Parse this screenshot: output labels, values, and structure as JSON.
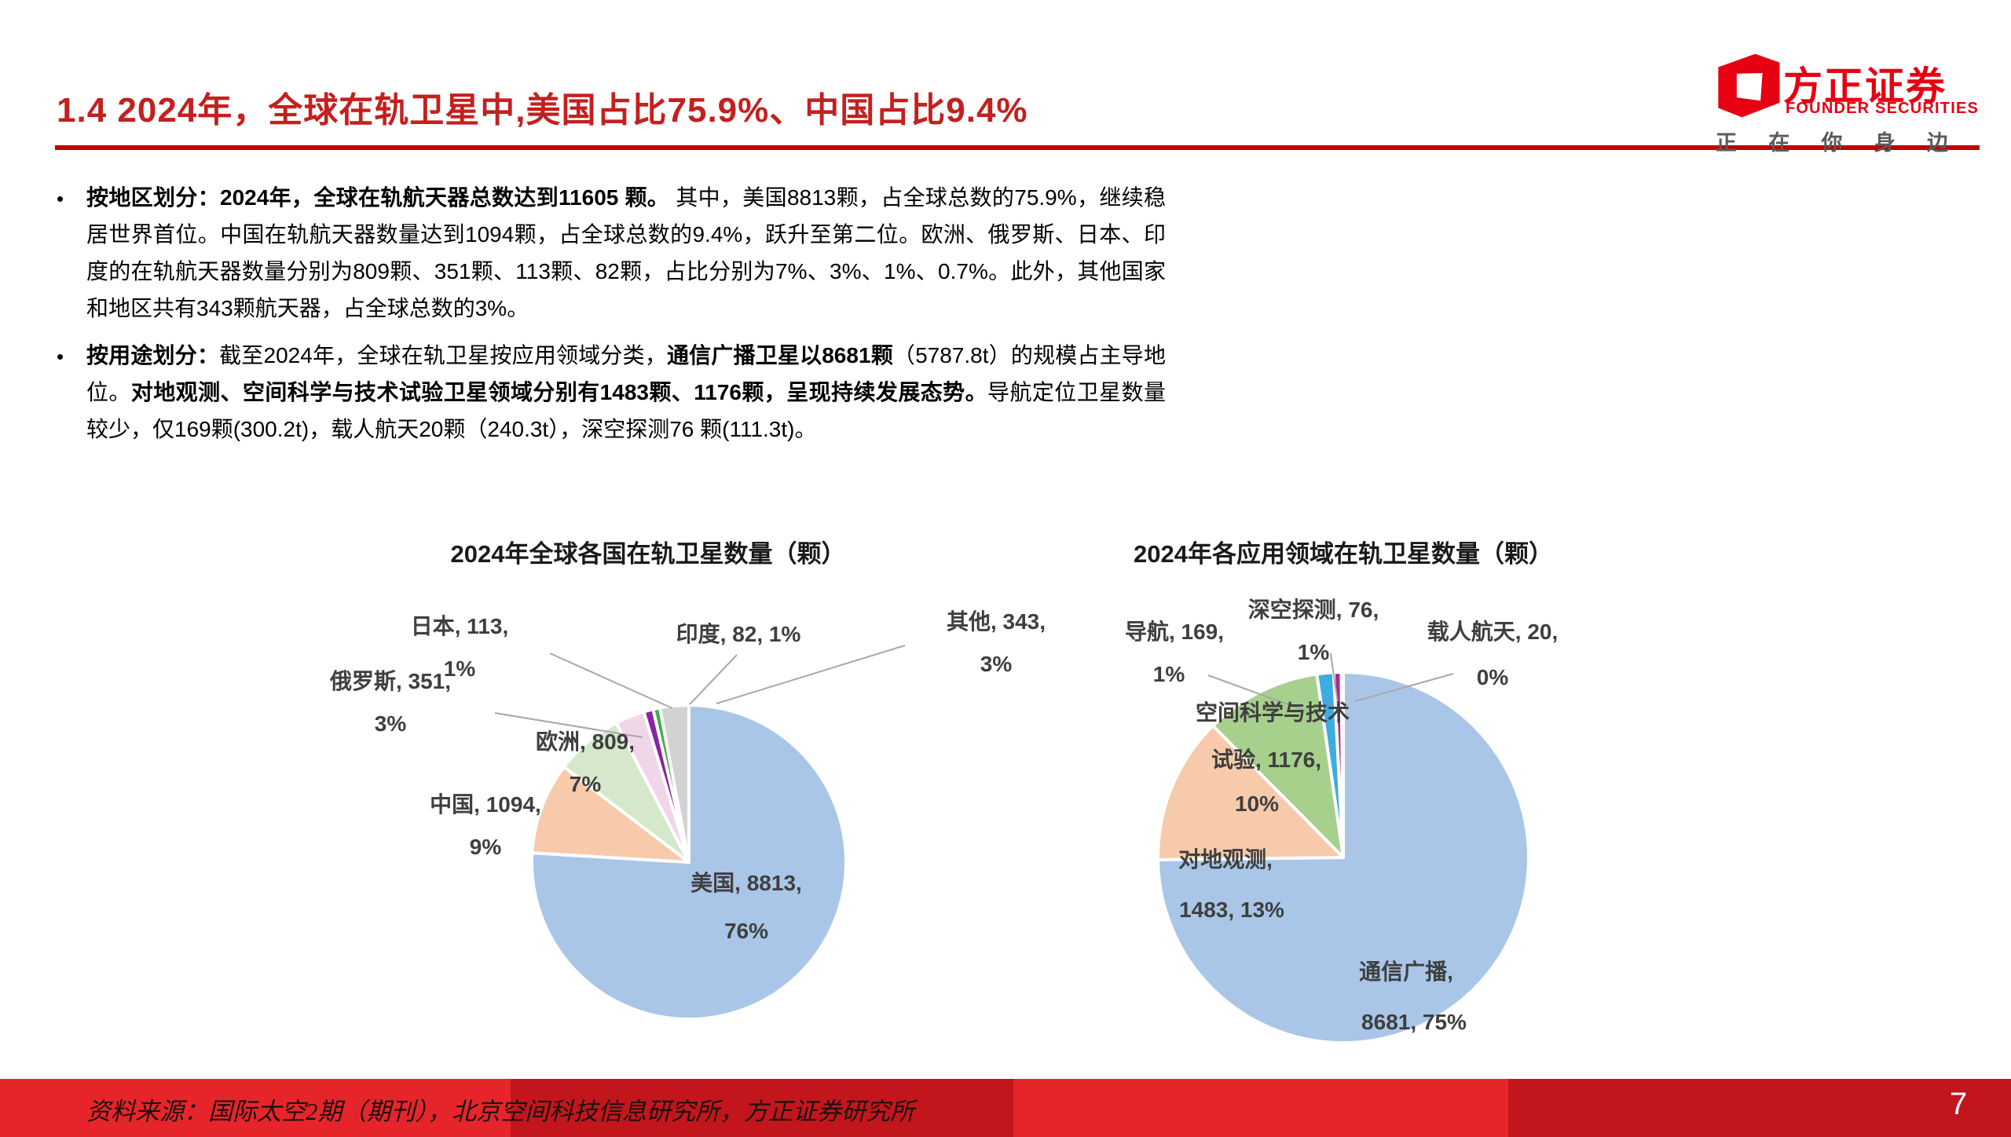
{
  "page": {
    "title": "1.4 2024年，全球在轨卫星中,美国占比75.9%、中国占比9.4%",
    "title_color": "#C3201F",
    "rule_color": "#C00000"
  },
  "logo": {
    "cn": "方正证券",
    "en": "FOUNDER SECURITIES",
    "tagline": "正在你身边",
    "red": "#E60012",
    "gray": "#5A5A5C"
  },
  "bullets": [
    {
      "segments": [
        {
          "b": 1,
          "t": "按地区划分：2024年，全球在轨航天器总数达到11605 颗。"
        },
        {
          "b": 0,
          "t": " 其中，美国8813颗，占全球总数的75.9%，继续稳居世界首位。中国在轨航天器数量达到1094颗，占全球总数的9.4%，跃升至第二位。欧洲、俄罗斯、日本、印度的在轨航天器数量分别为809颗、351颗、113颗、82颗，占比分别为7%、3%、1%、0.7%。此外，其他国家和地区共有343颗航天器，占全球总数的3%。"
        }
      ]
    },
    {
      "segments": [
        {
          "b": 1,
          "t": "按用途划分："
        },
        {
          "b": 0,
          "t": "截至2024年，全球在轨卫星按应用领域分类，"
        },
        {
          "b": 1,
          "t": "通信广播卫星以8681颗"
        },
        {
          "b": 0,
          "t": "（5787.8t）的规模占主导地位。"
        },
        {
          "b": 1,
          "t": "对地观测、空间科学与技术试验卫星领域分别有1483颗、1176颗，呈现持续发展态势。"
        },
        {
          "b": 0,
          "t": "导航定位卫星数量较少，仅169颗(300.2t)，载人航天20颗（240.3t），深空探测76 颗(111.3t)。"
        }
      ]
    }
  ],
  "chart_data": [
    {
      "type": "pie",
      "title": "2024年全球各国在轨卫星数量（颗）",
      "categories": [
        "美国",
        "中国",
        "欧洲",
        "俄罗斯",
        "日本",
        "印度",
        "其他"
      ],
      "values": [
        8813,
        1094,
        809,
        351,
        113,
        82,
        343
      ],
      "percent_labels": [
        "76%",
        "9%",
        "7%",
        "3%",
        "1%",
        "1%",
        "3%"
      ],
      "label_lines": [
        [
          "美国, 8813,",
          "76%"
        ],
        [
          "中国, 1094,",
          "9%"
        ],
        [
          "欧洲, 809,",
          "7%"
        ],
        [
          "俄罗斯, 351,",
          "3%"
        ],
        [
          "日本, 113,",
          "1%"
        ],
        [
          "印度, 82, 1%"
        ],
        [
          "其他, 343,",
          "3%"
        ]
      ],
      "colors": [
        "#A9C6E8",
        "#F6CAAB",
        "#D6E8CB",
        "#F1D6E9",
        "#8B23A0",
        "#3FAE49",
        "#D2D2D2"
      ],
      "total": 11605,
      "start_angle_deg": 0,
      "direction": "clockwise",
      "label_color": "#3F3F3F",
      "leader_line_color": "#A8A8A8"
    },
    {
      "type": "pie",
      "title": "2024年各应用领域在轨卫星数量（颗）",
      "categories": [
        "通信广播",
        "对地观测",
        "空间科学与技术试验",
        "导航",
        "深空探测",
        "载人航天"
      ],
      "values": [
        8681,
        1483,
        1176,
        169,
        76,
        20
      ],
      "percent_labels": [
        "75%",
        "13%",
        "10%",
        "1%",
        "1%",
        "0%"
      ],
      "label_lines": [
        [
          "通信广播,",
          "8681, 75%"
        ],
        [
          "对地观测,",
          "1483, 13%"
        ],
        [
          "空间科学与技术",
          "试验, 1176,",
          "10%"
        ],
        [
          "导航, 169,",
          "1%"
        ],
        [
          "深空探测, 76,",
          "1%"
        ],
        [
          "载人航天, 20,",
          "0%"
        ]
      ],
      "colors": [
        "#A9C6E8",
        "#F6CAAB",
        "#A6D08C",
        "#3FACE0",
        "#B5238F",
        "#24346B"
      ],
      "total": 11605,
      "start_angle_deg": 0,
      "direction": "clockwise",
      "label_color": "#3F3F3F",
      "leader_line_color": "#A8A8A8"
    }
  ],
  "footer": {
    "source_text": "资料来源：国际太空2期（期刊），北京空间科技信息研究所，方正证券研究所",
    "page_number": "7",
    "red_bright": "#E6252B",
    "red_dark": "#C2161C"
  }
}
